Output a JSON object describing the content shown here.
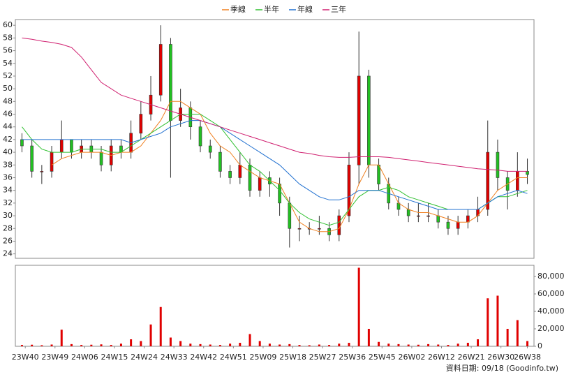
{
  "chart_data": {
    "type": "candlestick",
    "x": [
      0,
      3,
      6,
      9,
      12,
      15,
      18,
      21,
      24,
      27,
      30,
      33,
      36,
      39,
      42,
      45,
      48,
      51,
      54,
      57,
      60,
      63,
      66,
      69,
      72,
      75,
      78,
      81,
      84,
      87,
      90,
      93,
      96,
      99,
      102,
      105,
      108,
      111,
      114,
      117,
      120,
      123,
      126,
      129,
      132,
      135,
      138,
      141,
      144,
      147,
      150,
      153
    ],
    "open": [
      42,
      41,
      37,
      37,
      40,
      42,
      40,
      41,
      40,
      38,
      41,
      40,
      43,
      46,
      49,
      57,
      45,
      47,
      44,
      41,
      40,
      37,
      36,
      38,
      34,
      36,
      35,
      32,
      28,
      28,
      28,
      28,
      27,
      30,
      38,
      52,
      38,
      35,
      32,
      31,
      30,
      30,
      30,
      29,
      28,
      29,
      30,
      31,
      40,
      36,
      34,
      37
    ],
    "high": [
      43,
      42,
      38,
      41,
      45,
      42,
      42,
      42,
      41,
      42,
      42,
      45,
      48,
      52,
      60,
      58,
      50,
      48,
      45,
      42,
      41,
      38,
      40,
      39,
      37,
      37,
      36,
      33,
      30,
      29,
      30,
      29,
      31,
      40,
      59,
      53,
      39,
      36,
      33,
      32,
      32,
      32,
      31,
      30,
      30,
      31,
      33,
      45,
      42,
      37,
      40,
      39
    ],
    "low": [
      40,
      36,
      35,
      36,
      39,
      39,
      39,
      39,
      37,
      37,
      39,
      39,
      42,
      45,
      48,
      36,
      44,
      42,
      40,
      39,
      36,
      35,
      35,
      33,
      33,
      33,
      30,
      25,
      26,
      27,
      27,
      26,
      26,
      29,
      35,
      36,
      34,
      31,
      30,
      29,
      29,
      29,
      28,
      27,
      27,
      28,
      29,
      30,
      34,
      31,
      33,
      35
    ],
    "close": [
      41,
      37,
      37,
      40,
      42,
      40,
      41,
      40,
      38,
      41,
      40,
      43,
      46,
      49,
      57,
      45,
      47,
      44,
      41,
      40,
      37,
      36,
      38,
      34,
      36,
      35,
      32,
      28,
      28,
      28,
      28,
      27,
      30,
      38,
      52,
      38,
      35,
      32,
      31,
      30,
      30,
      30,
      29,
      28,
      29,
      30,
      31,
      40,
      36,
      34,
      37,
      36.5
    ],
    "up_color": "#e00000",
    "down_color": "#22c022",
    "series": [
      {
        "name": "季線",
        "color": "#f08020",
        "values": [
          null,
          null,
          null,
          38,
          39,
          39.5,
          40,
          40,
          40,
          39.5,
          40,
          40,
          41,
          43,
          45,
          48,
          48,
          47,
          46,
          43,
          41,
          40,
          38,
          37,
          36,
          35.5,
          35,
          32,
          29,
          28,
          27.5,
          27.5,
          28,
          31,
          35,
          38,
          38,
          35,
          32,
          31,
          30.5,
          30.5,
          30,
          29.5,
          29,
          29,
          30,
          32,
          34,
          35,
          36,
          36
        ]
      },
      {
        "name": "半年",
        "color": "#30c030",
        "values": [
          44,
          42,
          40.5,
          40,
          40,
          40,
          40.5,
          40.5,
          40.5,
          40,
          40,
          41,
          42,
          43,
          44,
          45,
          46,
          46,
          46,
          45,
          44,
          42,
          40,
          38,
          37,
          35.5,
          34,
          32,
          30.5,
          29.5,
          29,
          28.5,
          29,
          31,
          33,
          34,
          34,
          34.5,
          34,
          33,
          32.5,
          32,
          31.5,
          31,
          31,
          31,
          31,
          32,
          33,
          33,
          33.5,
          34
        ]
      },
      {
        "name": "年線",
        "color": "#2070d0",
        "values": [
          42,
          42,
          42,
          42,
          42,
          42,
          42,
          42,
          42,
          42,
          42,
          41.5,
          42,
          42.5,
          43,
          44,
          44.5,
          45,
          45,
          44.5,
          44,
          43,
          42,
          41,
          40,
          39,
          38,
          36.5,
          35,
          34,
          33,
          32.5,
          32.5,
          33,
          34,
          34,
          34,
          33.5,
          33,
          32.5,
          32,
          31.5,
          31,
          31,
          31,
          31,
          31,
          32,
          33,
          33.5,
          34,
          33.5
        ]
      },
      {
        "name": "三年",
        "color": "#d02070",
        "values": [
          58,
          57.8,
          57.5,
          57.3,
          57,
          56.5,
          55,
          53,
          51,
          50,
          49,
          48.5,
          48,
          47.5,
          47,
          46.5,
          46,
          45.5,
          45,
          44.5,
          44,
          43.5,
          43,
          42.5,
          42,
          41.5,
          41,
          40.5,
          40,
          39.8,
          39.5,
          39.3,
          39.2,
          39.2,
          39.3,
          39.3,
          39.3,
          39.2,
          39,
          38.8,
          38.6,
          38.4,
          38.2,
          38,
          37.8,
          37.6,
          37.4,
          37.3,
          37.2,
          37,
          37,
          37
        ]
      }
    ],
    "volume": {
      "color": "#e00000",
      "values": [
        1500,
        1800,
        1200,
        2000,
        19000,
        2500,
        1500,
        1800,
        2200,
        1500,
        3000,
        8000,
        6000,
        25000,
        45000,
        10000,
        6000,
        3000,
        2500,
        2000,
        1500,
        3000,
        4000,
        14000,
        6000,
        3000,
        2000,
        2500,
        1500,
        1200,
        2000,
        1500,
        3000,
        4000,
        90000,
        20000,
        5000,
        3000,
        2500,
        2000,
        1800,
        2500,
        2000,
        1500,
        3000,
        4000,
        8000,
        55000,
        58000,
        20000,
        30000,
        6000
      ]
    },
    "xlim": [
      -2,
      155
    ],
    "ylim": [
      23.3,
      60.9
    ],
    "yticks": [
      24,
      26,
      28,
      30,
      32,
      34,
      36,
      38,
      40,
      42,
      44,
      46,
      48,
      50,
      52,
      54,
      56,
      58,
      60
    ],
    "y2lim": [
      0,
      92800
    ],
    "y2ticks": [
      0,
      {
        "value": 20000,
        "label": "20,000"
      },
      {
        "value": 40000,
        "label": "40,000"
      },
      {
        "value": 60000,
        "label": "60,000"
      },
      {
        "value": 80000,
        "label": "80,000"
      }
    ],
    "xticks": [
      {
        "value": 1,
        "label": "23W40"
      },
      {
        "value": 10,
        "label": "23W49"
      },
      {
        "value": 19,
        "label": "24W06"
      },
      {
        "value": 28,
        "label": "24W15"
      },
      {
        "value": 37,
        "label": "24W24"
      },
      {
        "value": 46,
        "label": "24W33"
      },
      {
        "value": 55,
        "label": "24W42"
      },
      {
        "value": 64,
        "label": "24W51"
      },
      {
        "value": 73,
        "label": "25W09"
      },
      {
        "value": 82,
        "label": "25W18"
      },
      {
        "value": 91,
        "label": "25W27"
      },
      {
        "value": 100,
        "label": "25W36"
      },
      {
        "value": 109,
        "label": "25W45"
      },
      {
        "value": 118,
        "label": "26W02"
      },
      {
        "value": 127,
        "label": "26W12"
      },
      {
        "value": 136,
        "label": "26W21"
      },
      {
        "value": 145,
        "label": "26W30"
      },
      {
        "value": 153,
        "label": "26W38"
      }
    ],
    "footer": "資料日期: 09/18 (Goodinfo.tw)"
  }
}
